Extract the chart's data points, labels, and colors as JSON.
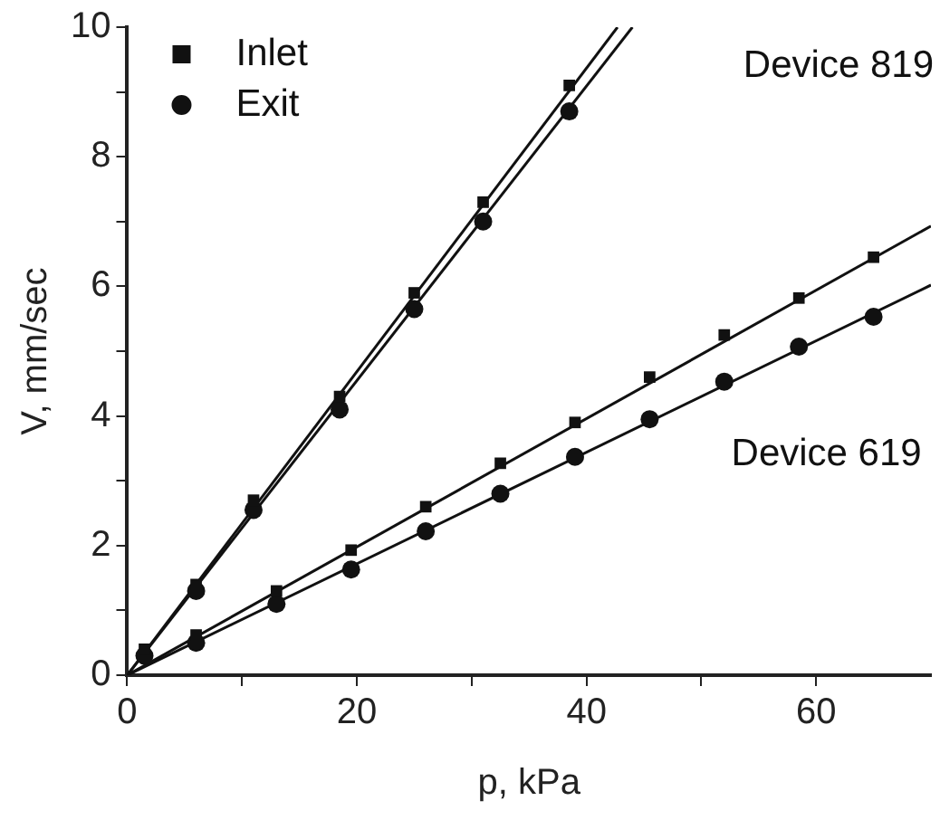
{
  "chart_data": {
    "type": "scatter",
    "xlabel": "p, kPa",
    "ylabel": "V, mm/sec",
    "xlim": [
      0,
      70
    ],
    "ylim": [
      0,
      10
    ],
    "xticks": [
      0,
      {
        "value": 10,
        "label": null
      },
      20,
      {
        "value": 30,
        "label": null
      },
      40,
      {
        "value": 50,
        "label": null
      },
      60
    ],
    "yticks": [
      0,
      {
        "value": 1,
        "label": null
      },
      2,
      {
        "value": 3,
        "label": null
      },
      4,
      {
        "value": 5,
        "label": null
      },
      6,
      {
        "value": 7,
        "label": null
      },
      8,
      {
        "value": 9,
        "label": null
      },
      10
    ],
    "grid": false,
    "legend": "top left",
    "series": [
      {
        "name": "Inlet",
        "marker": "square",
        "color": "#111111",
        "x": [
          1.5,
          6,
          11,
          18.5,
          25,
          31,
          38.5
        ],
        "values": [
          0.4,
          1.4,
          2.7,
          4.3,
          5.9,
          7.3,
          9.1
        ]
      },
      {
        "name": "Exit",
        "marker": "circle",
        "color": "#111111",
        "x": [
          1.5,
          6,
          11,
          18.5,
          25,
          31,
          38.5
        ],
        "values": [
          0.3,
          1.3,
          2.55,
          4.1,
          5.65,
          7.0,
          8.7
        ]
      },
      {
        "marker": "square",
        "color": "#111111",
        "x": [
          6,
          13,
          19.5,
          26,
          32.5,
          39,
          45.5,
          52,
          58.5,
          65
        ],
        "values": [
          0.62,
          1.3,
          1.93,
          2.6,
          3.27,
          3.9,
          4.6,
          5.25,
          5.82,
          6.45
        ]
      },
      {
        "marker": "circle",
        "color": "#111111",
        "x": [
          6,
          13,
          19.5,
          26,
          32.5,
          39,
          45.5,
          52,
          58.5,
          65
        ],
        "values": [
          0.5,
          1.1,
          1.63,
          2.22,
          2.8,
          3.37,
          3.95,
          4.53,
          5.07,
          5.53
        ]
      },
      {
        "type": "line",
        "marker": "none",
        "color": "#111111",
        "x": [
          0,
          42.7
        ],
        "values": [
          0,
          10
        ]
      },
      {
        "type": "line",
        "marker": "none",
        "color": "#111111",
        "x": [
          0,
          44
        ],
        "values": [
          0,
          10
        ]
      },
      {
        "type": "line",
        "marker": "none",
        "color": "#111111",
        "x": [
          0,
          70
        ],
        "values": [
          0,
          6.93
        ]
      },
      {
        "type": "line",
        "marker": "none",
        "color": "#111111",
        "x": [
          0,
          70
        ],
        "values": [
          0,
          6.02
        ]
      }
    ],
    "annotations": [
      "Device 819",
      "Device 619"
    ]
  }
}
